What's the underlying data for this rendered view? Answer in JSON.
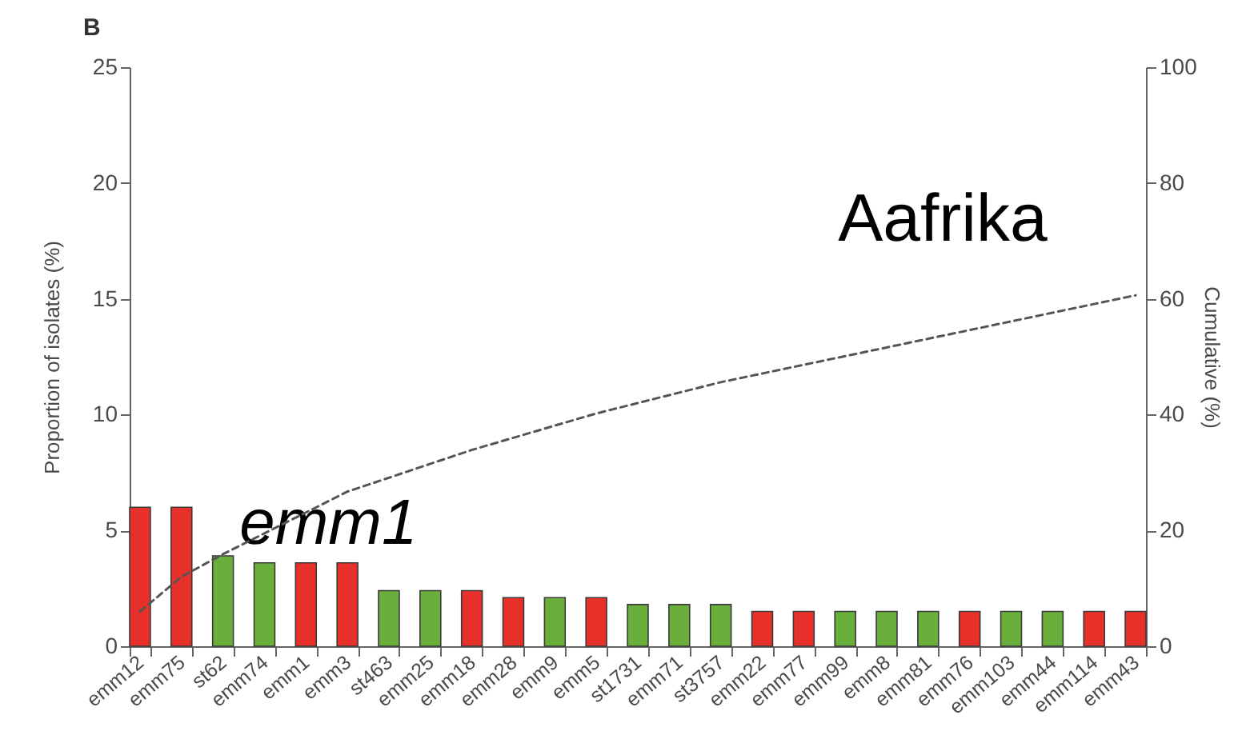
{
  "chart_data": {
    "type": "bar",
    "title": "B",
    "ylabel": "Proportion of isolates (%)",
    "y2label": "Cumulative (%)",
    "categories": [
      "emm12",
      "emm75",
      "st62",
      "emm74",
      "emm1",
      "emm3",
      "st463",
      "emm25",
      "emm18",
      "emm28",
      "emm9",
      "emm5",
      "st1731",
      "emm71",
      "st3757",
      "emm22",
      "emm77",
      "emm99",
      "emm8",
      "emm81",
      "emm76",
      "emm103",
      "emm44",
      "emm114",
      "emm43"
    ],
    "series": [
      {
        "values": [
          6,
          6,
          3.9,
          3.6,
          3.6,
          3.6,
          2.4,
          2.4,
          2.4,
          2.1,
          2.1,
          2.1,
          1.8,
          1.8,
          1.8,
          1.5,
          1.5,
          1.5,
          1.5,
          1.5,
          1.5,
          1.5,
          1.5,
          1.5,
          1.5
        ],
        "colors": [
          "#e8302a",
          "#e8302a",
          "#6aae3c",
          "#6aae3c",
          "#e8302a",
          "#e8302a",
          "#6aae3c",
          "#6aae3c",
          "#e8302a",
          "#e8302a",
          "#6aae3c",
          "#e8302a",
          "#6aae3c",
          "#6aae3c",
          "#6aae3c",
          "#e8302a",
          "#e8302a",
          "#6aae3c",
          "#6aae3c",
          "#6aae3c",
          "#e8302a",
          "#6aae3c",
          "#6aae3c",
          "#e8302a",
          "#e8302a"
        ]
      },
      {
        "type": "line",
        "axis": "y2",
        "color": "#555555",
        "line_style": "dashed",
        "values": [
          6,
          12,
          15.9,
          19.5,
          23.1,
          26.7,
          29.1,
          31.5,
          33.9,
          36,
          38.1,
          40.2,
          42,
          43.8,
          45.6,
          47.1,
          48.6,
          50.1,
          51.6,
          53.1,
          54.6,
          56.1,
          57.6,
          59.1,
          60.6
        ]
      }
    ],
    "ylim": [
      0,
      25
    ],
    "yticks": [
      0,
      5,
      10,
      15,
      20,
      25
    ],
    "y2lim": [
      0,
      100
    ],
    "y2ticks": [
      0,
      20,
      40,
      60,
      80,
      100
    ],
    "annotations": [
      {
        "text": "emm1",
        "x": "emm1",
        "y": 3.6
      },
      "Aafrika"
    ],
    "grid": false
  }
}
